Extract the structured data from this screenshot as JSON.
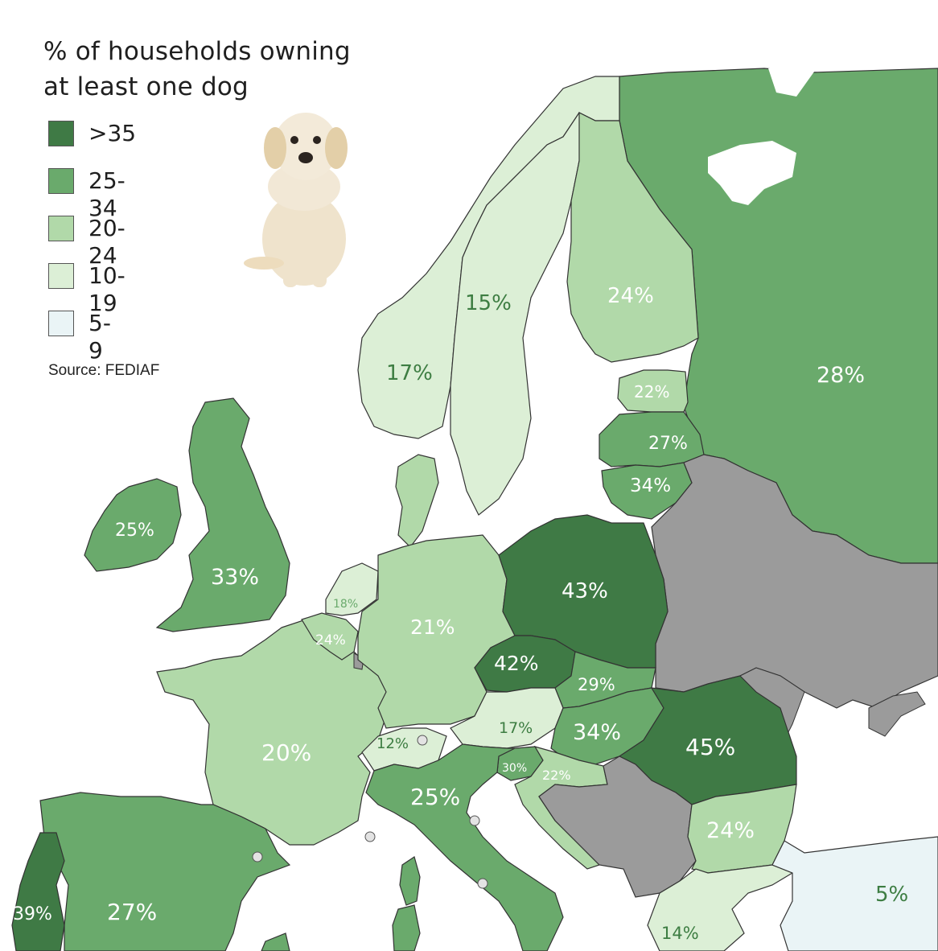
{
  "legend": {
    "title_line1": "% of households owning",
    "title_line2": "at least one dog",
    "source": "Source: FEDIAF",
    "items": [
      {
        "label": ">35",
        "color": "#3f7a45"
      },
      {
        "label": "25-34",
        "color": "#6aaa6c"
      },
      {
        "label": "20-24",
        "color": "#b1d9a9"
      },
      {
        "label": "10-19",
        "color": "#dcefd6"
      },
      {
        "label": "5-9",
        "color": "#eaf4f6"
      }
    ]
  },
  "colors": {
    "gt35": "#3f7a45",
    "c25_34": "#6aaa6c",
    "c20_24": "#b1d9a9",
    "c10_19": "#dcefd6",
    "c5_9": "#eaf4f6",
    "no_data": "#9b9b9b",
    "border": "#222222"
  },
  "countries": [
    {
      "name": "Norway",
      "value": "17%"
    },
    {
      "name": "Sweden",
      "value": "15%"
    },
    {
      "name": "Finland",
      "value": "24%"
    },
    {
      "name": "Russia",
      "value": "28%"
    },
    {
      "name": "Estonia",
      "value": "22%"
    },
    {
      "name": "Latvia",
      "value": "27%"
    },
    {
      "name": "Lithuania",
      "value": "34%"
    },
    {
      "name": "Ireland",
      "value": "25%"
    },
    {
      "name": "United Kingdom",
      "value": "33%"
    },
    {
      "name": "Netherlands",
      "value": "18%"
    },
    {
      "name": "Belgium",
      "value": "24%"
    },
    {
      "name": "Germany",
      "value": "21%"
    },
    {
      "name": "Poland",
      "value": "43%"
    },
    {
      "name": "Czechia",
      "value": "42%"
    },
    {
      "name": "Slovakia",
      "value": "29%"
    },
    {
      "name": "Austria",
      "value": "17%"
    },
    {
      "name": "Hungary",
      "value": "34%"
    },
    {
      "name": "Romania",
      "value": "45%"
    },
    {
      "name": "Switzerland",
      "value": "12%"
    },
    {
      "name": "France",
      "value": "20%"
    },
    {
      "name": "Slovenia",
      "value": "30%"
    },
    {
      "name": "Croatia",
      "value": "22%"
    },
    {
      "name": "Italy",
      "value": "25%"
    },
    {
      "name": "Bulgaria",
      "value": "24%"
    },
    {
      "name": "Turkey",
      "value": "5%"
    },
    {
      "name": "Portugal",
      "value": "39%"
    },
    {
      "name": "Spain",
      "value": "27%"
    },
    {
      "name": "Greece",
      "value": "14%"
    }
  ]
}
